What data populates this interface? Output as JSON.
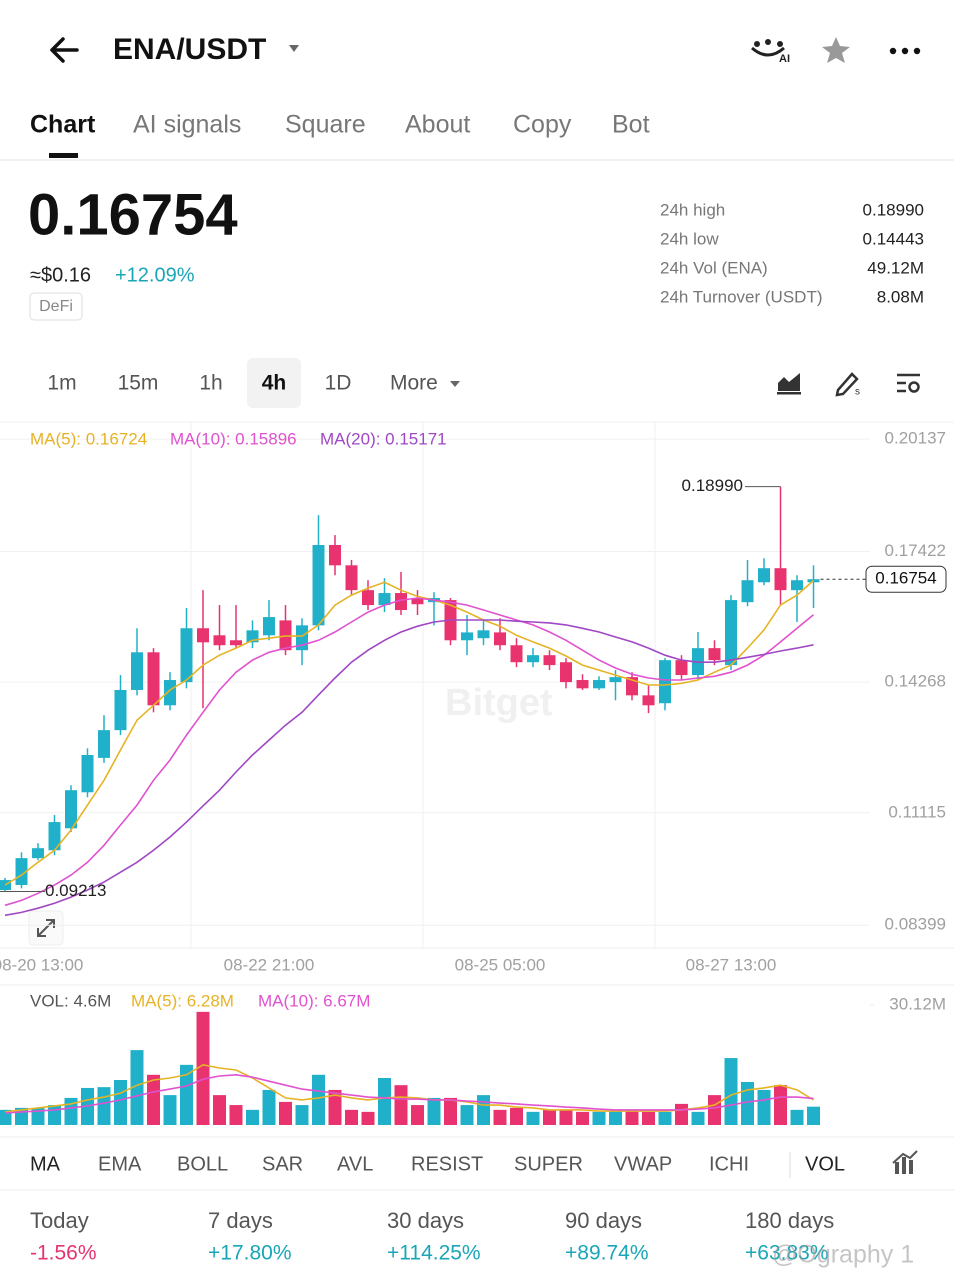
{
  "header": {
    "pair": "ENA/USDT"
  },
  "tabs": [
    "Chart",
    "AI signals",
    "Square",
    "About",
    "Copy",
    "Bot"
  ],
  "ticker": {
    "price": "0.16754",
    "usd": "≈$0.16",
    "change": "+12.09%",
    "change_color": "#1aa6b7",
    "tag": "DeFi"
  },
  "stats": [
    {
      "label": "24h high",
      "value": "0.18990"
    },
    {
      "label": "24h low",
      "value": "0.14443"
    },
    {
      "label": "24h Vol (ENA)",
      "value": "49.12M"
    },
    {
      "label": "24h Turnover (USDT)",
      "value": "8.08M"
    }
  ],
  "timeframes": [
    "1m",
    "15m",
    "1h",
    "4h",
    "1D",
    "More"
  ],
  "chart_data": [
    {
      "type": "candlestick",
      "up_color": "#21b0c9",
      "down_color": "#e8336e",
      "categories": [
        null,
        null,
        "08-20 13:00",
        null,
        null,
        null,
        null,
        null,
        null,
        null,
        null,
        null,
        null,
        null,
        null,
        null,
        "08-22 21:00",
        null,
        null,
        null,
        null,
        null,
        null,
        null,
        null,
        null,
        null,
        null,
        null,
        null,
        "08-25 05:00",
        null,
        null,
        null,
        null,
        null,
        null,
        null,
        null,
        null,
        null,
        null,
        null,
        null,
        "08-27 13:00",
        null,
        null,
        null,
        null,
        null
      ],
      "open": [
        0.0925,
        0.0937,
        0.1002,
        0.1021,
        0.1074,
        0.1161,
        0.1244,
        0.1311,
        0.1408,
        0.1499,
        0.1371,
        0.1427,
        0.1557,
        0.154,
        0.1528,
        0.1523,
        0.154,
        0.1576,
        0.1504,
        0.1564,
        0.1758,
        0.1709,
        0.1649,
        0.1613,
        0.1642,
        0.163,
        0.162,
        0.1625,
        0.1528,
        0.1533,
        0.1547,
        0.1516,
        0.1475,
        0.1492,
        0.1475,
        0.1432,
        0.1412,
        0.1427,
        0.1439,
        0.1395,
        0.1376,
        0.148,
        0.1444,
        0.1509,
        0.1468,
        0.162,
        0.1668,
        0.1702,
        0.1649,
        0.1668
      ],
      "high": [
        0.0954,
        0.1016,
        0.1038,
        0.1106,
        0.1178,
        0.1267,
        0.1347,
        0.1444,
        0.1557,
        0.1509,
        0.1451,
        0.1606,
        0.1649,
        0.1613,
        0.1613,
        0.1576,
        0.1625,
        0.1613,
        0.1581,
        0.183,
        0.1782,
        0.1722,
        0.1673,
        0.1678,
        0.1693,
        0.1649,
        0.1644,
        0.163,
        0.1589,
        0.1576,
        0.1581,
        0.1533,
        0.1509,
        0.1504,
        0.1485,
        0.1446,
        0.1441,
        0.1456,
        0.1451,
        0.1419,
        0.1485,
        0.1492,
        0.1548,
        0.1528,
        0.1637,
        0.1722,
        0.1726,
        0.1899,
        0.1685,
        0.1709
      ],
      "low": [
        0.09213,
        0.0929,
        0.0997,
        0.1009,
        0.1065,
        0.1149,
        0.1232,
        0.1299,
        0.1395,
        0.1354,
        0.1359,
        0.1412,
        0.1364,
        0.1504,
        0.1509,
        0.1509,
        0.1528,
        0.1492,
        0.1468,
        0.1552,
        0.1685,
        0.1637,
        0.1601,
        0.1596,
        0.1589,
        0.1589,
        0.1564,
        0.1516,
        0.1492,
        0.1516,
        0.1504,
        0.1463,
        0.1463,
        0.1456,
        0.1412,
        0.1408,
        0.1408,
        0.1383,
        0.1383,
        0.1352,
        0.1359,
        0.1432,
        0.1432,
        0.1468,
        0.1456,
        0.161,
        0.1661,
        0.1613,
        0.1572,
        0.1606
      ],
      "close": [
        0.0949,
        0.1002,
        0.1026,
        0.1089,
        0.1166,
        0.1251,
        0.1311,
        0.1408,
        0.1499,
        0.1371,
        0.1432,
        0.1557,
        0.1523,
        0.1516,
        0.1516,
        0.1552,
        0.1584,
        0.1504,
        0.1564,
        0.1758,
        0.1709,
        0.1649,
        0.1613,
        0.1642,
        0.1601,
        0.1615,
        0.163,
        0.1528,
        0.1547,
        0.1552,
        0.1516,
        0.1475,
        0.1492,
        0.1468,
        0.1427,
        0.1412,
        0.1432,
        0.1439,
        0.1395,
        0.1371,
        0.148,
        0.1444,
        0.1509,
        0.148,
        0.1625,
        0.1673,
        0.1702,
        0.1649,
        0.1673,
        0.16754
      ],
      "series": [
        {
          "name": "MA(5): 0.16724",
          "color": "#e6b325",
          "values": [
            0.0937,
            0.0961,
            0.0992,
            0.1021,
            0.107,
            0.113,
            0.119,
            0.1263,
            0.1335,
            0.1371,
            0.1408,
            0.1432,
            0.1468,
            0.1492,
            0.1509,
            0.1528,
            0.1533,
            0.1538,
            0.1538,
            0.1565,
            0.1613,
            0.1637,
            0.1654,
            0.1668,
            0.1649,
            0.1634,
            0.1625,
            0.1613,
            0.1596,
            0.1577,
            0.1562,
            0.154,
            0.1524,
            0.1509,
            0.149,
            0.1468,
            0.1456,
            0.1444,
            0.1432,
            0.142,
            0.142,
            0.1424,
            0.1432,
            0.1451,
            0.1468,
            0.1509,
            0.1553,
            0.1613,
            0.1637,
            0.16724
          ]
        },
        {
          "name": "MA(10): 0.15896",
          "color": "#e052cf",
          "values": [
            0.0888,
            0.09,
            0.0917,
            0.0937,
            0.0961,
            0.0992,
            0.1033,
            0.1082,
            0.113,
            0.119,
            0.1239,
            0.1299,
            0.1354,
            0.1408,
            0.1451,
            0.148,
            0.1499,
            0.1509,
            0.1516,
            0.1528,
            0.1548,
            0.1572,
            0.1596,
            0.1613,
            0.1625,
            0.163,
            0.1625,
            0.162,
            0.1613,
            0.1601,
            0.1589,
            0.1577,
            0.1565,
            0.1548,
            0.1528,
            0.1504,
            0.148,
            0.1461,
            0.1446,
            0.1437,
            0.1432,
            0.1432,
            0.1437,
            0.1441,
            0.1451,
            0.1468,
            0.1492,
            0.1524,
            0.1557,
            0.15896
          ]
        },
        {
          "name": "MA(20): 0.15171",
          "color": "#a048c4",
          "values": [
            0.0864,
            0.0871,
            0.0881,
            0.0893,
            0.0908,
            0.0925,
            0.0944,
            0.0968,
            0.0992,
            0.1021,
            0.1053,
            0.1089,
            0.1128,
            0.1166,
            0.121,
            0.1251,
            0.1287,
            0.1323,
            0.1354,
            0.1396,
            0.1437,
            0.1475,
            0.1504,
            0.1528,
            0.1548,
            0.1562,
            0.1572,
            0.1577,
            0.1577,
            0.1577,
            0.1577,
            0.1574,
            0.1572,
            0.157,
            0.1565,
            0.1557,
            0.1548,
            0.1536,
            0.1524,
            0.1509,
            0.1492,
            0.148,
            0.1475,
            0.1475,
            0.148,
            0.1487,
            0.1494,
            0.1502,
            0.1509,
            0.15171
          ]
        }
      ],
      "ylim": [
        0.0785,
        0.2055
      ],
      "yticks": [
        0.20137,
        0.17422,
        0.14268,
        0.11115,
        0.08399
      ],
      "grid": true,
      "high_marker": {
        "value": 0.1899,
        "label": "0.18990"
      },
      "low_marker": 0.09213,
      "last_price": 0.16754,
      "logo": "Bitget"
    },
    {
      "type": "bar",
      "legend_label": "VOL: 4.6M",
      "values": [
        3.8,
        4.3,
        4.3,
        5.0,
        6.8,
        9.3,
        9.5,
        11.3,
        18.8,
        12.6,
        7.5,
        15.1,
        28.4,
        7.5,
        5.0,
        3.8,
        8.8,
        5.8,
        5.0,
        12.6,
        8.8,
        3.8,
        3.3,
        11.8,
        10.0,
        5.0,
        6.8,
        6.8,
        5.0,
        7.5,
        3.8,
        4.3,
        3.3,
        3.8,
        3.8,
        3.3,
        3.3,
        3.8,
        3.8,
        3.3,
        3.3,
        5.3,
        3.3,
        7.5,
        16.8,
        10.8,
        8.8,
        10.0,
        3.8,
        4.6
      ],
      "series": [
        {
          "name": "MA(5): 6.28M",
          "color": "#e6b325",
          "values": [
            3.3,
            3.8,
            4.3,
            4.8,
            5.3,
            6.3,
            7.0,
            8.0,
            10.0,
            11.3,
            11.8,
            12.6,
            15.1,
            14.3,
            13.8,
            11.8,
            9.3,
            6.8,
            6.3,
            6.8,
            7.5,
            6.8,
            6.3,
            6.8,
            7.0,
            6.8,
            6.3,
            6.3,
            5.8,
            5.0,
            5.0,
            4.5,
            4.3,
            3.8,
            3.8,
            3.8,
            3.5,
            3.5,
            3.5,
            3.5,
            3.5,
            3.8,
            4.3,
            5.0,
            7.5,
            8.8,
            9.3,
            10.0,
            8.8,
            6.28
          ]
        },
        {
          "name": "MA(10): 6.67M",
          "color": "#e052cf",
          "values": [
            3.0,
            3.3,
            3.5,
            3.8,
            4.3,
            4.8,
            5.5,
            6.3,
            7.3,
            8.3,
            9.0,
            9.8,
            11.5,
            12.3,
            12.6,
            12.0,
            11.0,
            10.0,
            9.0,
            8.5,
            8.0,
            7.5,
            7.0,
            6.8,
            6.5,
            6.5,
            6.3,
            6.3,
            6.0,
            5.8,
            5.5,
            5.3,
            5.0,
            4.8,
            4.5,
            4.3,
            4.0,
            3.8,
            3.8,
            3.8,
            3.8,
            3.8,
            4.0,
            4.3,
            5.0,
            5.8,
            6.3,
            7.0,
            7.0,
            6.67
          ]
        }
      ],
      "ylim": [
        0,
        30.12
      ],
      "yticks": [
        {
          "value": 30.12,
          "label": "30.12M"
        }
      ]
    }
  ],
  "indicators": [
    "MA",
    "EMA",
    "BOLL",
    "SAR",
    "AVL",
    "RESIST",
    "SUPER",
    "VWAP",
    "ICHI",
    "VOL"
  ],
  "performance": [
    {
      "label": "Today",
      "value": "-1.56%",
      "color": "#e8336e"
    },
    {
      "label": "7 days",
      "value": "+17.80%",
      "color": "#1aa6b7"
    },
    {
      "label": "30 days",
      "value": "+114.25%",
      "color": "#1aa6b7"
    },
    {
      "label": "90 days",
      "value": "+89.74%",
      "color": "#1aa6b7"
    },
    {
      "label": "180 days",
      "value": "+63.83%",
      "color": "#1aa6b7"
    }
  ],
  "watermark": "@Ography 1"
}
